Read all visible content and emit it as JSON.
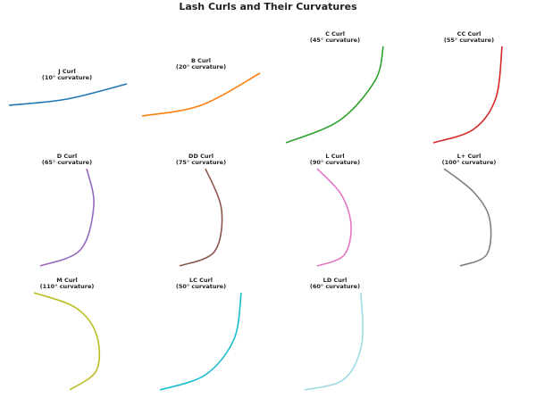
{
  "title": "Lash Curls and Their Curvatures",
  "chart_data": [
    {
      "type": "line",
      "title": "J Curl",
      "subtitle": "(10° curvature)",
      "color": "#1f77b4",
      "x": [
        0.1,
        0.75,
        1.42
      ],
      "values": [
        0.42,
        0.49,
        0.66
      ]
    },
    {
      "type": "line",
      "title": "B Curl",
      "subtitle": "(20° curvature)",
      "color": "#ff7f0e",
      "x": [
        0.09,
        0.75,
        1.41
      ],
      "values": [
        0.3,
        0.42,
        0.78
      ]
    },
    {
      "type": "line",
      "title": "C Curl",
      "subtitle": "(45° curvature)",
      "color": "#2ca02c",
      "x": [
        0.2,
        0.8,
        1.2,
        1.29
      ],
      "values": [
        0.0,
        0.25,
        0.7,
        1.08
      ]
    },
    {
      "type": "line",
      "title": "CC Curl",
      "subtitle": "(55° curvature)",
      "color": "#d62728",
      "x": [
        0.35,
        0.8,
        1.05,
        1.12
      ],
      "values": [
        0.0,
        0.15,
        0.5,
        1.08
      ]
    },
    {
      "type": "line",
      "title": "D Curl",
      "subtitle": "(65° curvature)",
      "color": "#9467bd",
      "x": [
        0.45,
        0.9,
        1.05,
        0.97
      ],
      "values": [
        0.0,
        0.18,
        0.68,
        1.09
      ]
    },
    {
      "type": "line",
      "title": "DD Curl",
      "subtitle": "(75° curvature)",
      "color": "#8c564b",
      "x": [
        0.51,
        0.9,
        0.98,
        0.8
      ],
      "values": [
        0.0,
        0.16,
        0.63,
        1.09
      ]
    },
    {
      "type": "line",
      "title": "L Curl",
      "subtitle": "(90° curvature)",
      "color": "#e377c2",
      "x": [
        0.55,
        0.85,
        0.93,
        0.82,
        0.55
      ],
      "values": [
        0.0,
        0.12,
        0.45,
        0.8,
        1.09
      ]
    },
    {
      "type": "line",
      "title": "L+ Curl",
      "subtitle": "(100° curvature)",
      "color": "#7f7f7f",
      "x": [
        0.65,
        0.95,
        0.98,
        0.8,
        0.47
      ],
      "values": [
        0.0,
        0.13,
        0.53,
        0.83,
        1.09
      ]
    },
    {
      "type": "line",
      "title": "M Curl",
      "subtitle": "(110° curvature)",
      "color": "#bcbd22",
      "x": [
        0.78,
        1.08,
        1.08,
        0.85,
        0.38
      ],
      "values": [
        0.0,
        0.22,
        0.62,
        0.92,
        1.09
      ]
    },
    {
      "type": "line",
      "title": "LC Curl",
      "subtitle": "(50° curvature)",
      "color": "#17becf",
      "x": [
        0.29,
        0.8,
        1.12,
        1.2
      ],
      "values": [
        0.0,
        0.17,
        0.57,
        1.09
      ]
    },
    {
      "type": "line",
      "title": "LD Curl",
      "subtitle": "(60° curvature)",
      "color": "#9edae5",
      "x": [
        0.41,
        0.85,
        1.05,
        1.04
      ],
      "values": [
        0.0,
        0.12,
        0.52,
        1.09
      ]
    }
  ]
}
